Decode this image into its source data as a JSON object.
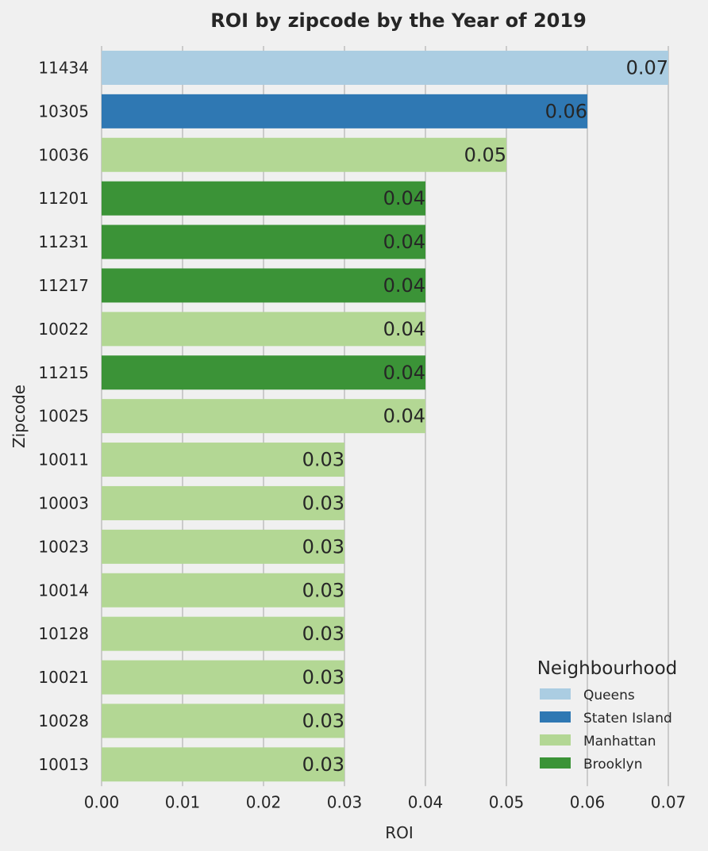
{
  "chart_data": {
    "type": "bar",
    "orientation": "horizontal",
    "title": "ROI by zipcode by the Year of 2019",
    "xlabel": "ROI",
    "ylabel": "Zipcode",
    "xlim": [
      0,
      0.07
    ],
    "xticks": [
      "0.00",
      "0.01",
      "0.02",
      "0.03",
      "0.04",
      "0.05",
      "0.06",
      "0.07"
    ],
    "grid": "vertical",
    "categories": [
      "11434",
      "10305",
      "10036",
      "11201",
      "11231",
      "11217",
      "10022",
      "11215",
      "10025",
      "10011",
      "10003",
      "10023",
      "10014",
      "10128",
      "10021",
      "10028",
      "10013"
    ],
    "values": [
      0.07,
      0.06,
      0.05,
      0.04,
      0.04,
      0.04,
      0.04,
      0.04,
      0.04,
      0.03,
      0.03,
      0.03,
      0.03,
      0.03,
      0.03,
      0.03,
      0.03
    ],
    "data_labels": [
      "0.07",
      "0.06",
      "0.05",
      "0.04",
      "0.04",
      "0.04",
      "0.04",
      "0.04",
      "0.04",
      "0.03",
      "0.03",
      "0.03",
      "0.03",
      "0.03",
      "0.03",
      "0.03",
      "0.03"
    ],
    "groups": [
      "Queens",
      "Staten Island",
      "Manhattan",
      "Brooklyn",
      "Brooklyn",
      "Brooklyn",
      "Manhattan",
      "Brooklyn",
      "Manhattan",
      "Manhattan",
      "Manhattan",
      "Manhattan",
      "Manhattan",
      "Manhattan",
      "Manhattan",
      "Manhattan",
      "Manhattan"
    ],
    "legend": {
      "title": "Neighbourhood",
      "placement": "bottom-right",
      "entries": [
        {
          "name": "Queens",
          "color": "#abcde2"
        },
        {
          "name": "Staten Island",
          "color": "#2f78b3"
        },
        {
          "name": "Manhattan",
          "color": "#b3d794"
        },
        {
          "name": "Brooklyn",
          "color": "#3b9337"
        }
      ]
    }
  }
}
